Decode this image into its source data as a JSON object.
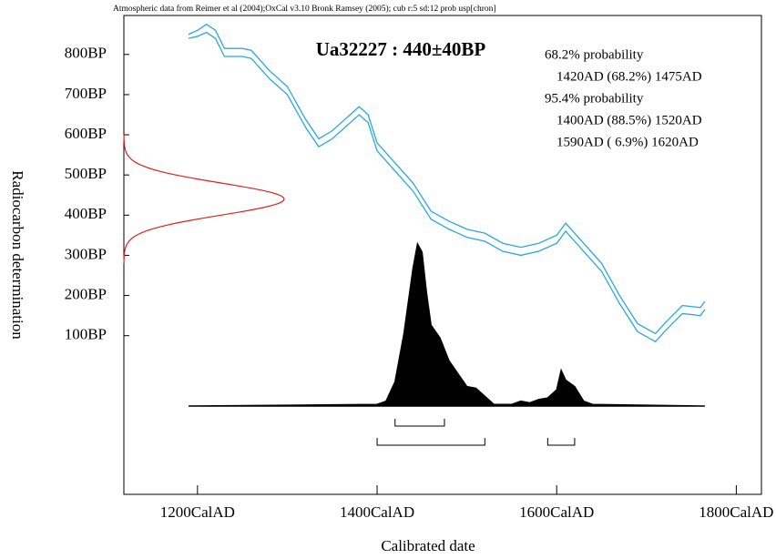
{
  "chart_data": {
    "type": "calibration",
    "header": "Atmospheric data from Reimer et al (2004);OxCal v3.10 Bronk Ramsey (2005); cub r:5 sd:12 prob usp[chron]",
    "title": "Ua32227 : 440±40BP",
    "x_label": "Calibrated date",
    "y_label": "Radiocarbon determination",
    "xlim": [
      1118,
      1828
    ],
    "ylim": [
      -295,
      897
    ],
    "xticks": [
      {
        "value": 1200,
        "label": "1200CalAD"
      },
      {
        "value": 1400,
        "label": "1400CalAD"
      },
      {
        "value": 1600,
        "label": "1600CalAD"
      },
      {
        "value": 1800,
        "label": "1800CalAD"
      }
    ],
    "yticks": [
      {
        "value": 100,
        "label": "100BP"
      },
      {
        "value": 200,
        "label": "200BP"
      },
      {
        "value": 300,
        "label": "300BP"
      },
      {
        "value": 400,
        "label": "400BP"
      },
      {
        "value": 500,
        "label": "500BP"
      },
      {
        "value": 600,
        "label": "600BP"
      },
      {
        "value": 700,
        "label": "700BP"
      },
      {
        "value": 800,
        "label": "800BP"
      }
    ],
    "measurement": {
      "mean": 440,
      "sd": 40,
      "color": "#e02020"
    },
    "x": [
      1190,
      1200,
      1210,
      1220,
      1230,
      1250,
      1260,
      1280,
      1300,
      1320,
      1335,
      1350,
      1370,
      1380,
      1390,
      1400,
      1420,
      1440,
      1460,
      1480,
      1500,
      1520,
      1540,
      1560,
      1580,
      1600,
      1610,
      1630,
      1650,
      1670,
      1690,
      1710,
      1720,
      1740,
      1760,
      1765
    ],
    "series": [
      {
        "color": "#29a8e0",
        "values": [
          850,
          860,
          875,
          860,
          815,
          815,
          810,
          760,
          720,
          640,
          590,
          610,
          650,
          670,
          650,
          580,
          530,
          480,
          410,
          385,
          365,
          355,
          330,
          320,
          330,
          350,
          380,
          330,
          280,
          200,
          130,
          105,
          130,
          175,
          170,
          185
        ]
      },
      {
        "color": "#29a8e0",
        "values": [
          840,
          845,
          855,
          840,
          795,
          795,
          790,
          740,
          700,
          620,
          570,
          590,
          630,
          650,
          630,
          560,
          510,
          460,
          390,
          365,
          345,
          335,
          310,
          300,
          310,
          330,
          360,
          310,
          260,
          180,
          110,
          85,
          110,
          155,
          150,
          165
        ]
      }
    ],
    "probability": {
      "color": "#000000",
      "x": [
        1190,
        1300,
        1400,
        1410,
        1420,
        1430,
        1440,
        1445,
        1450,
        1455,
        1460,
        1470,
        1480,
        1490,
        1500,
        1510,
        1520,
        1530,
        1550,
        1560,
        1570,
        1580,
        1590,
        1600,
        1605,
        1610,
        1620,
        1630,
        1640,
        1765
      ],
      "values": [
        0,
        0.5,
        1,
        3,
        15,
        45,
        85,
        100,
        95,
        70,
        50,
        42,
        28,
        20,
        12,
        11,
        6,
        1,
        1,
        3,
        2,
        4,
        5,
        10,
        22,
        16,
        12,
        3,
        1,
        0
      ]
    },
    "ranges": [
      {
        "label": "68.2% probability",
        "intervals": [
          {
            "text": "1420AD (68.2%) 1475AD",
            "from": 1420,
            "to": 1475
          }
        ]
      },
      {
        "label": "95.4% probability",
        "intervals": [
          {
            "text": "1400AD (88.5%) 1520AD",
            "from": 1400,
            "to": 1520
          },
          {
            "text": "1590AD ( 6.9%) 1620AD",
            "from": 1590,
            "to": 1620
          }
        ]
      }
    ]
  }
}
